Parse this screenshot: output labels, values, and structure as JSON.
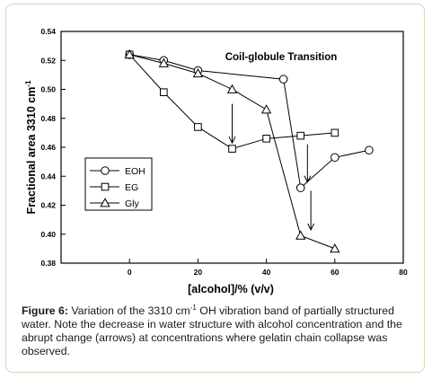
{
  "chart_data": {
    "type": "line",
    "title": "Coil-globule Transition",
    "xlabel": "[alcohol]/% (v/v)",
    "ylabel_main": "Fractional area 3310 cm",
    "ylabel_sup": "-1",
    "xlim": [
      -20,
      80
    ],
    "ylim": [
      0.38,
      0.54
    ],
    "xticks": [
      0,
      20,
      40,
      60,
      80
    ],
    "yticks": [
      0.38,
      0.4,
      0.42,
      0.44,
      0.46,
      0.48,
      0.5,
      0.52,
      0.54
    ],
    "xtick_labels": [
      "0",
      "20",
      "40",
      "60",
      "80"
    ],
    "ytick_labels": [
      "0.38",
      "0.40",
      "0.42",
      "0.44",
      "0.46",
      "0.48",
      "0.50",
      "0.52",
      "0.54"
    ],
    "grid": false,
    "legend_position": "left",
    "series": [
      {
        "name": "EOH",
        "marker": "circle",
        "x": [
          0,
          10,
          20,
          45,
          50,
          60,
          70
        ],
        "y": [
          0.524,
          0.52,
          0.513,
          0.507,
          0.432,
          0.453,
          0.458
        ]
      },
      {
        "name": "EG",
        "marker": "square",
        "x": [
          0,
          10,
          20,
          30,
          40,
          50,
          60
        ],
        "y": [
          0.524,
          0.498,
          0.474,
          0.459,
          0.466,
          0.468,
          0.47
        ]
      },
      {
        "name": "Gly",
        "marker": "triangle",
        "x": [
          0,
          10,
          20,
          30,
          40,
          50,
          60
        ],
        "y": [
          0.524,
          0.518,
          0.511,
          0.5,
          0.486,
          0.399,
          0.39
        ]
      }
    ],
    "arrows": [
      {
        "x": 30,
        "y_from": 0.49,
        "y_to": 0.463
      },
      {
        "x": 52,
        "y_from": 0.462,
        "y_to": 0.436
      },
      {
        "x": 53,
        "y_from": 0.43,
        "y_to": 0.403
      }
    ]
  },
  "caption": {
    "label": "Figure 6:",
    "text_1": " Variation of the 3310 cm",
    "sup": "-1",
    "text_2": " OH vibration band of partially structured water. Note the decrease in    water structure with alcohol concentration and the abrupt change (arrows) at concentrations where gelatin chain collapse was observed."
  }
}
